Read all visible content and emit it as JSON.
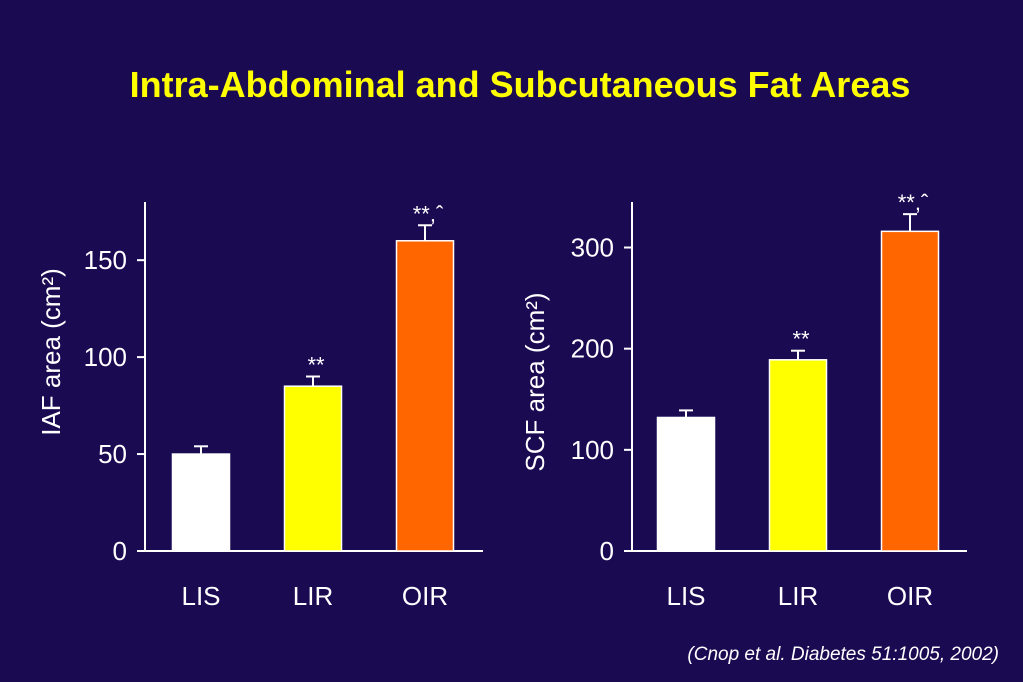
{
  "slide": {
    "title": "Intra-Abdominal and Subcutaneous Fat Areas",
    "citation": "(Cnop et al. Diabetes 51:1005, 2002)"
  },
  "colors": {
    "background": "#1a0a52",
    "title": "#ffff00",
    "LIS": "#ffffff",
    "LIR": "#ffff00",
    "OIR": "#ff6600"
  },
  "chart_data": [
    {
      "type": "bar",
      "ylabel": "IAF area (cm²)",
      "xlabel": "",
      "categories": [
        "LIS",
        "LIR",
        "OIR"
      ],
      "values": [
        50,
        85,
        160
      ],
      "errors": [
        4,
        5,
        8
      ],
      "annotations": [
        "",
        "**",
        "**,ˆ"
      ],
      "ylim": [
        0,
        180
      ],
      "yticks": [
        0,
        50,
        100,
        150
      ],
      "bar_colors": [
        "#ffffff",
        "#ffff00",
        "#ff6600"
      ],
      "grid": false,
      "legend": "none"
    },
    {
      "type": "bar",
      "ylabel": "SCF area (cm²)",
      "xlabel": "",
      "categories": [
        "LIS",
        "LIR",
        "OIR"
      ],
      "values": [
        132,
        189,
        316
      ],
      "errors": [
        7,
        9,
        17
      ],
      "annotations": [
        "",
        "**",
        "**,ˆ"
      ],
      "ylim": [
        0,
        345
      ],
      "yticks": [
        0,
        100,
        200,
        300
      ],
      "bar_colors": [
        "#ffffff",
        "#ffff00",
        "#ff6600"
      ],
      "grid": false,
      "legend": "none"
    }
  ]
}
